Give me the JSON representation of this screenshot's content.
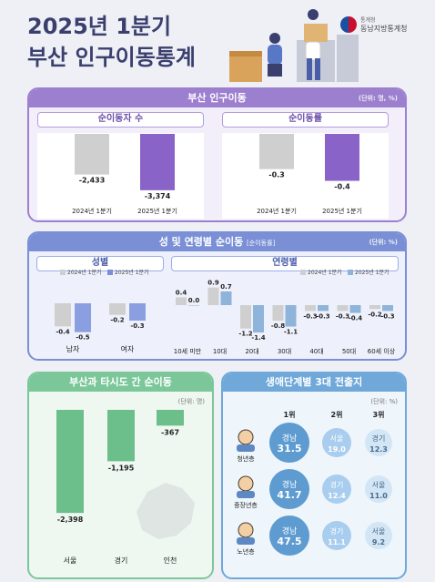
{
  "header": {
    "title_line1": "2025년 1분기",
    "title_line2": "부산 인구이동통계",
    "org_small": "통계청",
    "org_name": "동남지방통계청"
  },
  "panel1": {
    "title": "부산 인구이동",
    "unit": "(단위: 명, %)",
    "left_title": "순이동자 수",
    "right_title": "순이동률"
  },
  "panel2": {
    "title": "성 및 연령별 순이동",
    "title_tag": "[순이동률]",
    "unit": "(단위: %)",
    "gender_title": "성별",
    "age_title": "연령별"
  },
  "panel3": {
    "title": "부산과 타시도 간 순이동",
    "unit": "(단위: 명)"
  },
  "panel4": {
    "title": "생애단계별 3대 전출지",
    "unit": "(단위: %)",
    "ranks": [
      "1위",
      "2위",
      "3위"
    ],
    "groups": [
      {
        "name": "청년층",
        "items": [
          {
            "region": "경남",
            "value": "31.5"
          },
          {
            "region": "서울",
            "value": "19.0"
          },
          {
            "region": "경기",
            "value": "12.3"
          }
        ]
      },
      {
        "name": "중장년층",
        "items": [
          {
            "region": "경남",
            "value": "41.7"
          },
          {
            "region": "경기",
            "value": "12.4"
          },
          {
            "region": "서울",
            "value": "11.0"
          }
        ]
      },
      {
        "name": "노년층",
        "items": [
          {
            "region": "경남",
            "value": "47.5"
          },
          {
            "region": "경기",
            "value": "11.1"
          },
          {
            "region": "서울",
            "value": "9.2"
          }
        ]
      }
    ]
  },
  "colors": {
    "purple": "#8a63c8",
    "purple_dark": "#6b4fa8",
    "gray_bar": "#cfcfcf",
    "blue": "#8fb4d9",
    "green": "#6cbf8b",
    "green_dark": "#3e9a68",
    "sky": "#5d9bd0"
  },
  "chart_data": [
    {
      "type": "bar",
      "title": "순이동자 수",
      "categories": [
        "2024년 1분기",
        "2025년 1분기"
      ],
      "values": [
        -2433,
        -3374
      ],
      "value_labels": [
        "-2,433",
        "-3,374"
      ],
      "ylim": [
        -3600,
        0
      ]
    },
    {
      "type": "bar",
      "title": "순이동률",
      "categories": [
        "2024년 1분기",
        "2025년 1분기"
      ],
      "values": [
        -0.3,
        -0.4
      ],
      "value_labels": [
        "-0.3",
        "-0.4"
      ],
      "ylim": [
        -0.45,
        0
      ]
    },
    {
      "type": "bar",
      "title": "성별",
      "categories": [
        "남자",
        "여자"
      ],
      "series": [
        {
          "name": "2024년 1분기",
          "values": [
            -0.4,
            -0.2
          ]
        },
        {
          "name": "2025년 1분기",
          "values": [
            -0.5,
            -0.3
          ]
        }
      ],
      "ylim": [
        -0.6,
        0
      ]
    },
    {
      "type": "bar",
      "title": "연령별",
      "categories": [
        "10세 미만",
        "10대",
        "20대",
        "30대",
        "40대",
        "50대",
        "60세 이상"
      ],
      "series": [
        {
          "name": "2024년 1분기",
          "values": [
            0.4,
            0.9,
            -1.2,
            -0.8,
            -0.3,
            -0.3,
            -0.2
          ]
        },
        {
          "name": "2025년 1분기",
          "values": [
            0.0,
            0.7,
            -1.4,
            -1.1,
            -0.3,
            -0.4,
            -0.3
          ]
        }
      ],
      "ylim": [
        -1.5,
        1.0
      ]
    },
    {
      "type": "bar",
      "title": "부산과 타시도 간 순이동",
      "categories": [
        "서울",
        "경기",
        "인천"
      ],
      "values": [
        -2398,
        -1195,
        -367
      ],
      "value_labels": [
        "-2,398",
        "-1,195",
        "-367"
      ],
      "ylim": [
        -2500,
        0
      ]
    }
  ]
}
